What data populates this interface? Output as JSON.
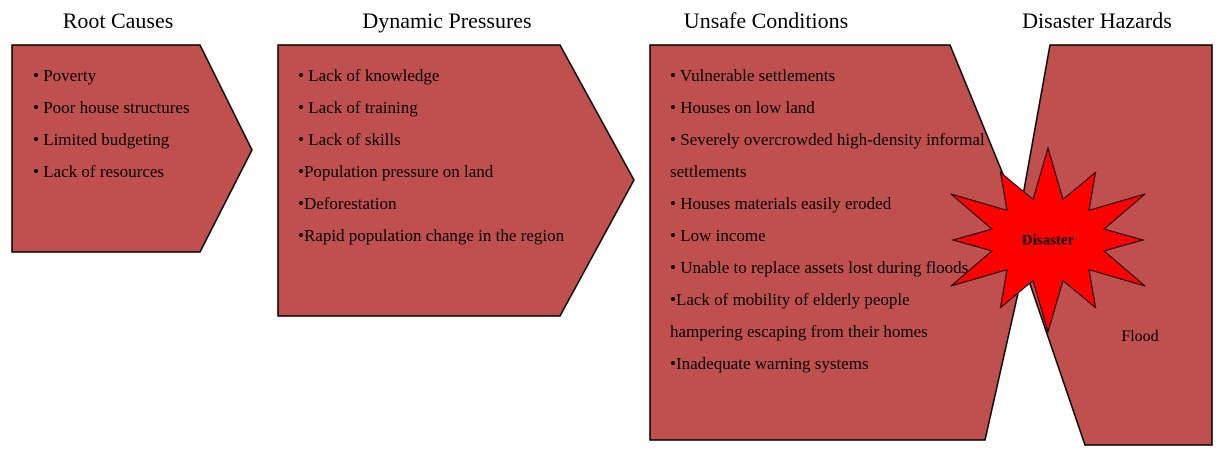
{
  "columns": [
    {
      "heading": "Root Causes",
      "items": [
        "• Poverty",
        "• Poor house structures",
        "• Limited budgeting",
        "• Lack of resources"
      ]
    },
    {
      "heading": "Dynamic Pressures",
      "items": [
        "• Lack of knowledge",
        "•   Lack of training",
        "• Lack of skills",
        "•Population pressure on land",
        "•Deforestation",
        "•Rapid population change in the region"
      ]
    },
    {
      "heading": "Unsafe Conditions",
      "items": [
        "• Vulnerable settlements",
        "• Houses on low land",
        "• Severely overcrowded high-density informal settlements",
        "• Houses materials easily eroded",
        "• Low income",
        "• Unable to replace assets lost during floods",
        "•Lack of mobility of elderly people hampering escaping from their homes",
        "•Inadequate warning systems"
      ]
    }
  ],
  "hazard": {
    "heading": "Disaster Hazards",
    "label": "Flood"
  },
  "burst": {
    "label": "Disaster"
  }
}
